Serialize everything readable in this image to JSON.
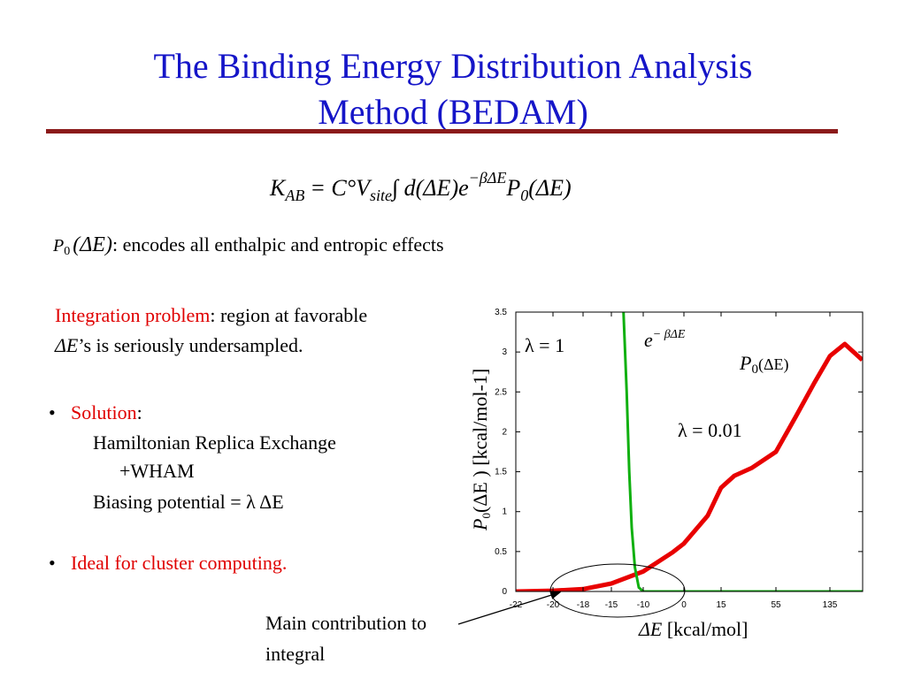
{
  "title": {
    "lines": [
      "The Binding Energy Distribution Analysis",
      "Method (BEDAM)"
    ]
  },
  "formula": {
    "k": "K",
    "k_sub": "AB",
    "c": "= C°V",
    "v_sub": "site",
    "integral": "∫ d(ΔE)e",
    "exp": "−βΔE",
    "p": "P",
    "p_sub": "0",
    "arg": "(ΔE)"
  },
  "p0_note": {
    "symbol": "P",
    "sub": "0",
    "arg": "(ΔE)",
    "text": ": encodes all enthalpic and entropic effects"
  },
  "integration": {
    "label": "Integration problem",
    "text": ": region at favorable",
    "symbol": "ΔE",
    "text2": "’s is seriously undersampled."
  },
  "bullets": [
    {
      "marker": "•",
      "label": "Solution",
      "colon": ":",
      "lines": [
        "Hamiltonian Replica Exchange",
        "+WHAM",
        "Biasing potential =  λ ΔE"
      ]
    },
    {
      "marker": "•",
      "label": "Ideal for cluster computing."
    }
  ],
  "chart": {
    "type": "line",
    "ylabel": {
      "p": "P",
      "sub": "0",
      "rest": "(ΔE ) [kcal/mol-1]"
    },
    "xlabel": {
      "sym": "ΔE",
      "rest": " [kcal/mol]"
    },
    "ylim": [
      0,
      3.5
    ],
    "yticks": [
      0,
      0.5,
      1,
      1.5,
      2,
      2.5,
      3,
      3.5
    ],
    "xticks": [
      -22,
      -20,
      -18,
      -15,
      -10,
      0,
      15,
      55,
      135
    ],
    "annotations": {
      "lambda1": "λ = 1",
      "lambda2": "λ = 0.01",
      "e": "e",
      "e_exp": "− βΔE",
      "p": "P",
      "p_sub": "0",
      "p_arg": "(ΔE)"
    },
    "series": [
      {
        "name": "P0(ΔE)",
        "color": "#e80000",
        "x": [
          -22,
          -20,
          -18,
          -15,
          -10,
          -2.8,
          0,
          9.6,
          15,
          24.7,
          37.6,
          55,
          85,
          111,
          135,
          157,
          170,
          183
        ],
        "values": [
          0,
          0.01,
          0.03,
          0.1,
          0.25,
          0.49,
          0.6,
          0.95,
          1.3,
          1.45,
          1.55,
          1.75,
          2.2,
          2.6,
          2.95,
          3.1,
          3.0,
          2.9
        ]
      },
      {
        "name": "e−βΔE",
        "color": "#10b010",
        "x": [
          -13.1,
          -12.6,
          -12.2,
          -11.8,
          -11.3,
          -10.7,
          -10,
          183
        ],
        "values": [
          3.5,
          2.5,
          1.5,
          0.8,
          0.3,
          0.05,
          0,
          0
        ]
      }
    ]
  },
  "callout": {
    "lines": [
      "Main contribution to",
      "integral"
    ]
  }
}
